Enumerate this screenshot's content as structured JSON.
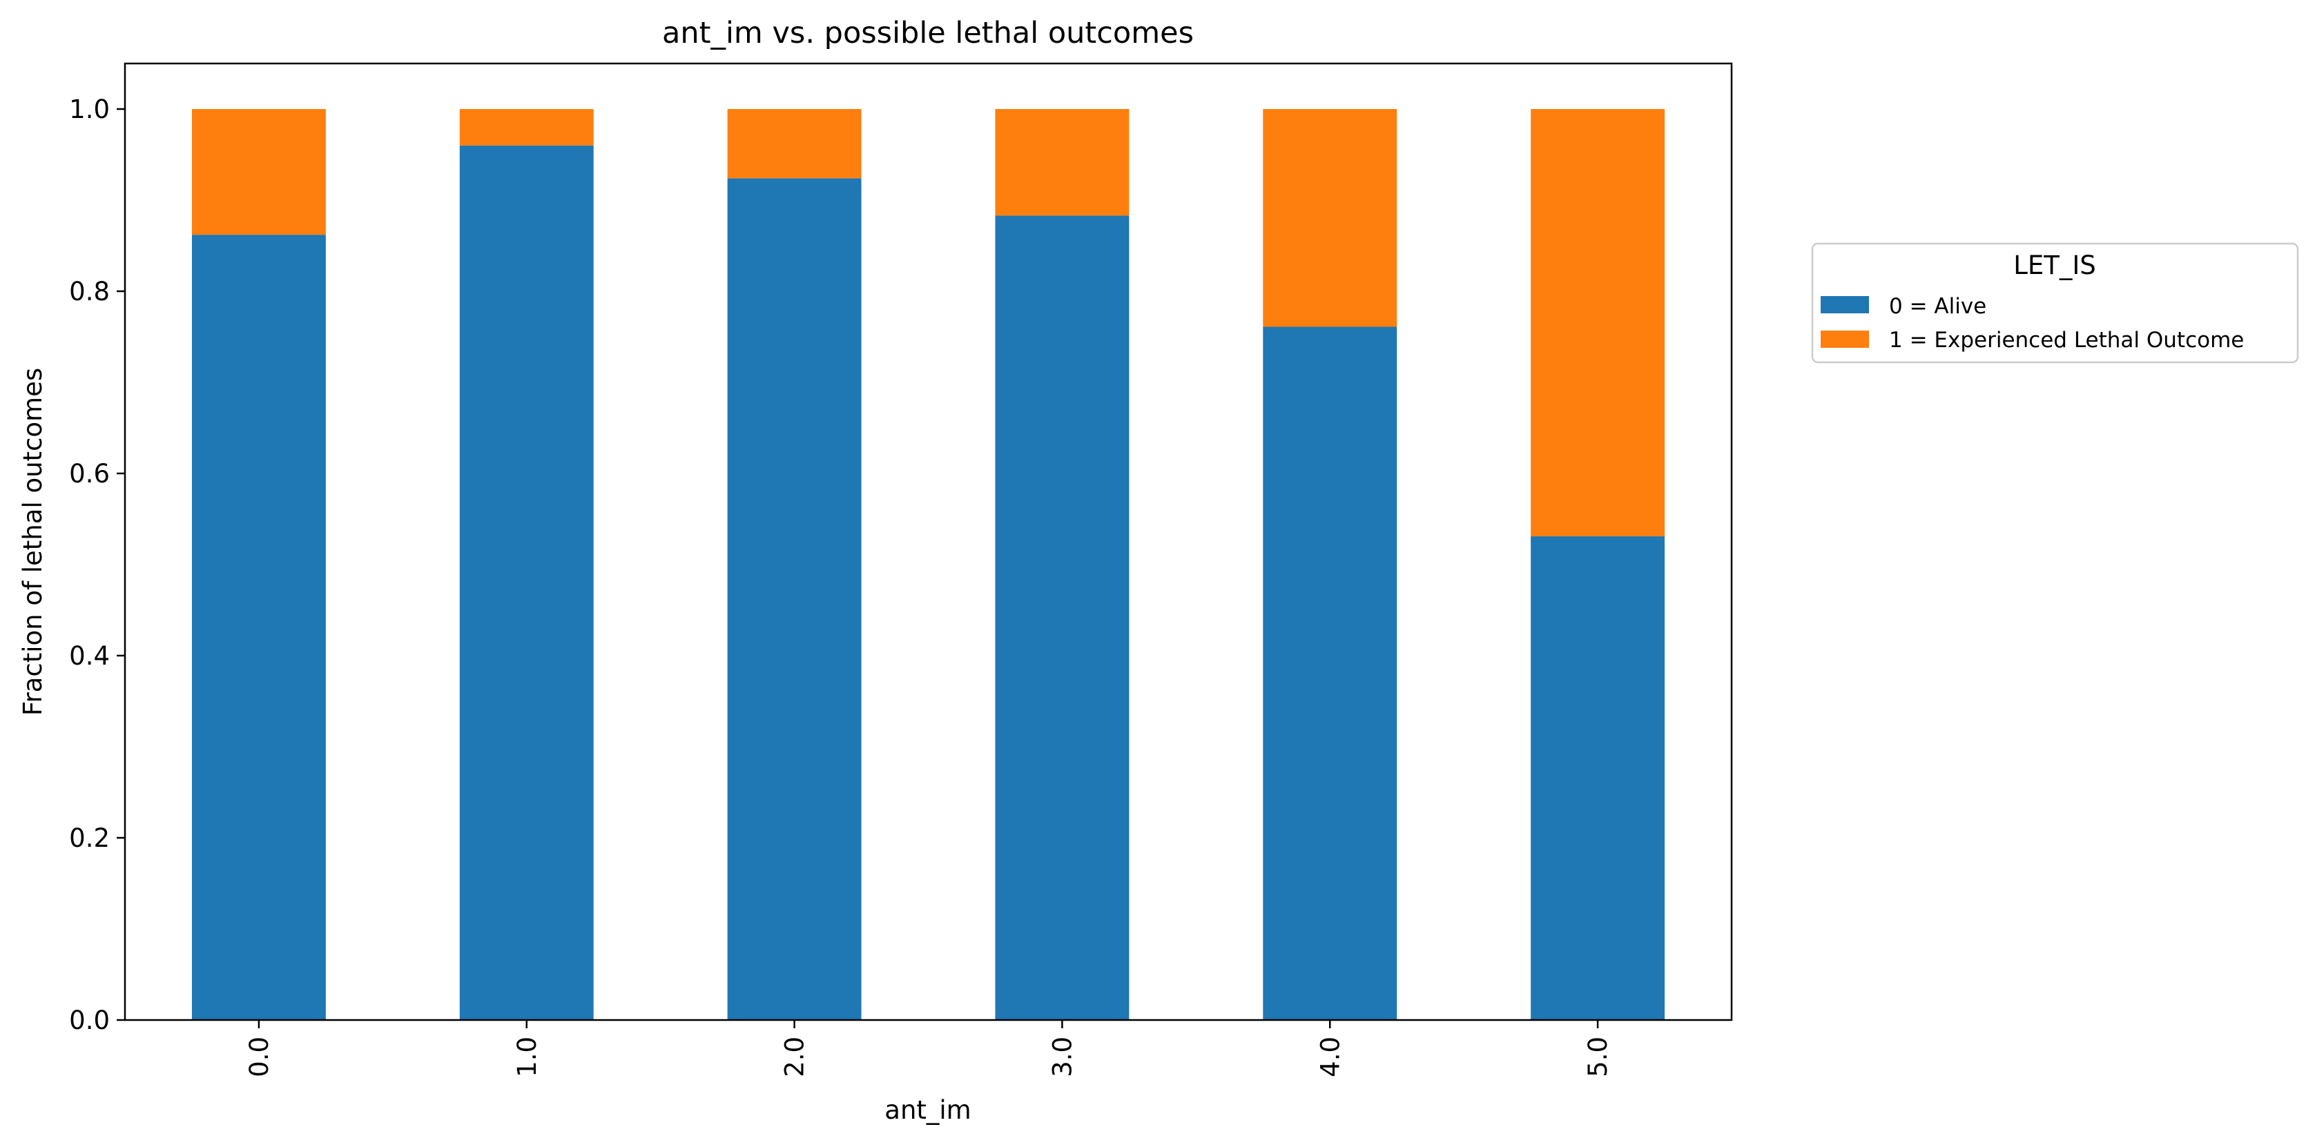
{
  "chart_data": {
    "type": "bar",
    "stacked": true,
    "title": "ant_im vs. possible lethal outcomes",
    "xlabel": "ant_im",
    "ylabel": "Fraction of lethal outcomes",
    "categories": [
      "0.0",
      "1.0",
      "2.0",
      "3.0",
      "4.0",
      "5.0"
    ],
    "series": [
      {
        "name": "0 = Alive",
        "color": "#1f77b4",
        "values": [
          0.862,
          0.96,
          0.924,
          0.883,
          0.761,
          0.531
        ]
      },
      {
        "name": "1 = Experienced Lethal Outcome",
        "color": "#ff7f0e",
        "values": [
          0.138,
          0.04,
          0.076,
          0.117,
          0.239,
          0.469
        ]
      }
    ],
    "ylim": [
      0,
      1.05
    ],
    "yticks": [
      "0.0",
      "0.2",
      "0.4",
      "0.6",
      "0.8",
      "1.0"
    ],
    "grid": false,
    "legend": {
      "title": "LET_IS",
      "placement": "outside-right"
    }
  }
}
